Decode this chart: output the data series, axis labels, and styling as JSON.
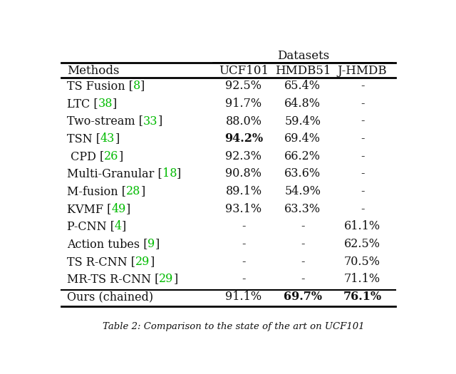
{
  "title": "Datasets",
  "col_headers": [
    "Methods",
    "UCF101",
    "HMDB51",
    "J-HMDB"
  ],
  "rows": [
    {
      "method_prefix": "TS Fusion [",
      "method_num": "8",
      "method_suffix": "]",
      "ucf": "92.5%",
      "hmdb": "65.4%",
      "jhmdb": "-",
      "ucf_bold": false,
      "hmdb_bold": false,
      "jhmdb_bold": false
    },
    {
      "method_prefix": "LTC [",
      "method_num": "38",
      "method_suffix": "]",
      "ucf": "91.7%",
      "hmdb": "64.8%",
      "jhmdb": "-",
      "ucf_bold": false,
      "hmdb_bold": false,
      "jhmdb_bold": false
    },
    {
      "method_prefix": "Two-stream [",
      "method_num": "33",
      "method_suffix": "]",
      "ucf": "88.0%",
      "hmdb": "59.4%",
      "jhmdb": "-",
      "ucf_bold": false,
      "hmdb_bold": false,
      "jhmdb_bold": false
    },
    {
      "method_prefix": "TSN [",
      "method_num": "43",
      "method_suffix": "]",
      "ucf": "94.2%",
      "hmdb": "69.4%",
      "jhmdb": "-",
      "ucf_bold": true,
      "hmdb_bold": false,
      "jhmdb_bold": false
    },
    {
      "method_prefix": " CPD [",
      "method_num": "26",
      "method_suffix": "]",
      "ucf": "92.3%",
      "hmdb": "66.2%",
      "jhmdb": "-",
      "ucf_bold": false,
      "hmdb_bold": false,
      "jhmdb_bold": false
    },
    {
      "method_prefix": "Multi-Granular [",
      "method_num": "18",
      "method_suffix": "]",
      "ucf": "90.8%",
      "hmdb": "63.6%",
      "jhmdb": "-",
      "ucf_bold": false,
      "hmdb_bold": false,
      "jhmdb_bold": false
    },
    {
      "method_prefix": "M-fusion [",
      "method_num": "28",
      "method_suffix": "]",
      "ucf": "89.1%",
      "hmdb": "54.9%",
      "jhmdb": "-",
      "ucf_bold": false,
      "hmdb_bold": false,
      "jhmdb_bold": false
    },
    {
      "method_prefix": "KVMF [",
      "method_num": "49",
      "method_suffix": "]",
      "ucf": "93.1%",
      "hmdb": "63.3%",
      "jhmdb": "-",
      "ucf_bold": false,
      "hmdb_bold": false,
      "jhmdb_bold": false
    },
    {
      "method_prefix": "P-CNN [",
      "method_num": "4",
      "method_suffix": "]",
      "ucf": "-",
      "hmdb": "-",
      "jhmdb": "61.1%",
      "ucf_bold": false,
      "hmdb_bold": false,
      "jhmdb_bold": false
    },
    {
      "method_prefix": "Action tubes [",
      "method_num": "9",
      "method_suffix": "]",
      "ucf": "-",
      "hmdb": "-",
      "jhmdb": "62.5%",
      "ucf_bold": false,
      "hmdb_bold": false,
      "jhmdb_bold": false
    },
    {
      "method_prefix": "TS R-CNN [",
      "method_num": "29",
      "method_suffix": "]",
      "ucf": "-",
      "hmdb": "-",
      "jhmdb": "70.5%",
      "ucf_bold": false,
      "hmdb_bold": false,
      "jhmdb_bold": false
    },
    {
      "method_prefix": "MR-TS R-CNN [",
      "method_num": "29",
      "method_suffix": "]",
      "ucf": "-",
      "hmdb": "-",
      "jhmdb": "71.1%",
      "ucf_bold": false,
      "hmdb_bold": false,
      "jhmdb_bold": false
    }
  ],
  "last_row": {
    "method": "Ours (chained)",
    "ucf": "91.1%",
    "hmdb": "69.7%",
    "jhmdb": "76.1%",
    "ucf_bold": false,
    "hmdb_bold": true,
    "jhmdb_bold": true
  },
  "green_color": "#00bb00",
  "black_color": "#111111",
  "bg_color": "#ffffff",
  "caption": "Table 2: Comparison to the state of the art on UCF101",
  "fontsize": 11.5,
  "header_fontsize": 12,
  "title_fontsize": 12
}
